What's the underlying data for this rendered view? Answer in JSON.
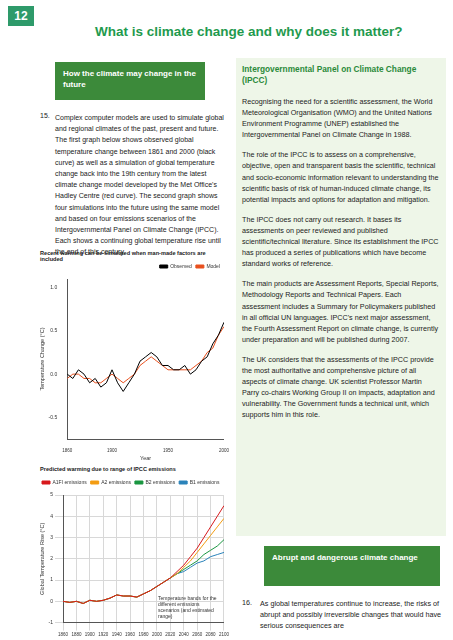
{
  "page_number": "12",
  "title": "What is climate change and why does it matter?",
  "left": {
    "heading": "How the climate may change in the future",
    "paragraph_number": "15.",
    "paragraph": "Complex computer models are used to simulate global and regional climates of the past, present and future. The first graph below shows observed global temperature change between 1861 and 2000 (black curve) as well as a simulation of global temperature change back into the 19th century from the latest climate change model developed by the Met Office's Hadley Centre (red curve). The second graph shows four simulations into the future using the same model and based on four emissions scenarios of the Intergovernmental Panel on Climate Change (IPCC). Each shows a continuing global temperature rise until the end of this century."
  },
  "right": {
    "heading": "Intergovernmental Panel on Climate Change (IPCC)",
    "paragraphs": [
      "Recognising the need for a scientific assessment, the World Meteorological Organisation (WMO) and the United Nations Environment Programme (UNEP) established the Intergovernmental Panel on Climate Change in 1988.",
      "The role of the IPCC is to assess on a comprehensive, objective, open and transparent basis the scientific, technical and socio-economic information relevant to understanding the scientific basis of risk of human-induced climate change, its potential impacts and options for adaptation and mitigation.",
      "The IPCC does not carry out research. It bases its assessments on peer reviewed and published scientific/technical literature. Since its establishment the IPCC has produced a series of publications which have become standard works of reference.",
      "The main products are Assessment Reports, Special Reports, Methodology Reports and Technical Papers. Each assessment includes a Summary for Policymakers published in all official UN languages. IPCC's next major assessment, the Fourth Assessment Report on climate change, is currently under preparation and will be published during 2007.",
      "The UK considers that the assessments of the IPCC provide the most authoritative and comprehensive picture of all aspects of climate change. UK scientist Professor Martin Parry co-chairs Working Group II on impacts, adaptation and vulnerability. The Government funds a technical unit, which supports him in this role."
    ],
    "heading2": "Abrupt and dangerous climate change",
    "paragraph_number2": "16.",
    "paragraph2": "As global temperatures continue to increase, the risks of abrupt and possibly irreversible changes that would have serious consequences are"
  },
  "chart_data": [
    {
      "type": "line",
      "title": "Recent warming can be simulated when man-made factors are included",
      "x_label": "Year",
      "y_label": "Temperature Change (°C)",
      "x": [
        1860,
        1865,
        1870,
        1875,
        1880,
        1885,
        1890,
        1895,
        1900,
        1905,
        1910,
        1915,
        1920,
        1925,
        1930,
        1935,
        1940,
        1945,
        1950,
        1955,
        1960,
        1965,
        1970,
        1975,
        1980,
        1985,
        1990,
        1995,
        2000
      ],
      "series": [
        {
          "name": "Observed",
          "color": "#000000",
          "values": [
            0.0,
            -0.05,
            0.05,
            0.0,
            -0.1,
            -0.05,
            -0.15,
            -0.1,
            0.05,
            -0.1,
            -0.2,
            -0.1,
            0.0,
            0.15,
            0.2,
            0.25,
            0.2,
            0.1,
            0.1,
            0.05,
            0.05,
            0.1,
            0.0,
            0.05,
            0.15,
            0.2,
            0.35,
            0.45,
            0.6
          ]
        },
        {
          "name": "Model",
          "color": "#e8501e",
          "values": [
            -0.05,
            0.0,
            0.0,
            -0.05,
            -0.05,
            -0.1,
            -0.1,
            -0.05,
            0.0,
            -0.05,
            -0.1,
            -0.05,
            0.0,
            0.1,
            0.15,
            0.2,
            0.15,
            0.1,
            0.05,
            0.05,
            0.05,
            0.05,
            0.05,
            0.1,
            0.15,
            0.25,
            0.3,
            0.45,
            0.55
          ]
        }
      ],
      "xlim": [
        1860,
        2000
      ],
      "xticks": [
        1860,
        1900,
        1950,
        2000
      ],
      "ylim": [
        -0.75,
        1.1
      ],
      "yticks": [
        {
          "value": -0.5,
          "label": "-0.5"
        },
        {
          "value": 0,
          "label": "0.0"
        },
        {
          "value": 0.5,
          "label": "0.5"
        },
        {
          "value": 1,
          "label": "1.0"
        }
      ],
      "grid": false,
      "legend": "top-right"
    },
    {
      "type": "line",
      "title": "Predicted warming due to range of IPCC emissions",
      "y_label": "Global Temperature Rise (°C)",
      "annotation": "Temperature bands for the different emissions scenarios (and estimated range)",
      "x": [
        1860,
        1870,
        1880,
        1890,
        1900,
        1910,
        1920,
        1930,
        1940,
        1950,
        1960,
        1970,
        1980,
        1990,
        2000,
        2010,
        2020,
        2030,
        2040,
        2050,
        2060,
        2070,
        2080,
        2090,
        2100
      ],
      "series": [
        {
          "name": "A1FI emissions",
          "color": "#d7191c",
          "values": [
            0,
            -0.05,
            0.0,
            -0.1,
            0.05,
            0.0,
            0.05,
            0.15,
            0.3,
            0.25,
            0.25,
            0.2,
            0.35,
            0.5,
            0.7,
            0.9,
            1.1,
            1.4,
            1.7,
            2.1,
            2.5,
            3.0,
            3.5,
            4.0,
            4.5
          ]
        },
        {
          "name": "A2 emissions",
          "color": "#f39c12",
          "values": [
            0,
            -0.05,
            0.0,
            -0.1,
            0.05,
            0.0,
            0.05,
            0.15,
            0.3,
            0.25,
            0.25,
            0.2,
            0.35,
            0.5,
            0.7,
            0.9,
            1.1,
            1.3,
            1.6,
            1.9,
            2.3,
            2.7,
            3.1,
            3.5,
            3.9
          ]
        },
        {
          "name": "B2 emissions",
          "color": "#1a9641",
          "values": [
            0,
            -0.05,
            0.0,
            -0.1,
            0.05,
            0.0,
            0.05,
            0.15,
            0.3,
            0.25,
            0.25,
            0.2,
            0.35,
            0.5,
            0.7,
            0.9,
            1.1,
            1.3,
            1.5,
            1.7,
            1.9,
            2.2,
            2.4,
            2.6,
            2.9
          ]
        },
        {
          "name": "B1 emissions",
          "color": "#2b83ba",
          "values": [
            0,
            -0.05,
            0.0,
            -0.1,
            0.05,
            0.0,
            0.05,
            0.15,
            0.3,
            0.25,
            0.25,
            0.2,
            0.35,
            0.5,
            0.7,
            0.9,
            1.1,
            1.3,
            1.4,
            1.6,
            1.8,
            1.9,
            2.1,
            2.2,
            2.3
          ]
        }
      ],
      "xlim": [
        1860,
        2100
      ],
      "xticks": [
        1860,
        1880,
        1900,
        1920,
        1940,
        1960,
        1980,
        2000,
        2020,
        2040,
        2060,
        2080,
        2100
      ],
      "ylim": [
        -1,
        5
      ],
      "yticks": [
        -1,
        0,
        1,
        2,
        3,
        4,
        5
      ],
      "grid": true,
      "legend": "top-left"
    }
  ]
}
